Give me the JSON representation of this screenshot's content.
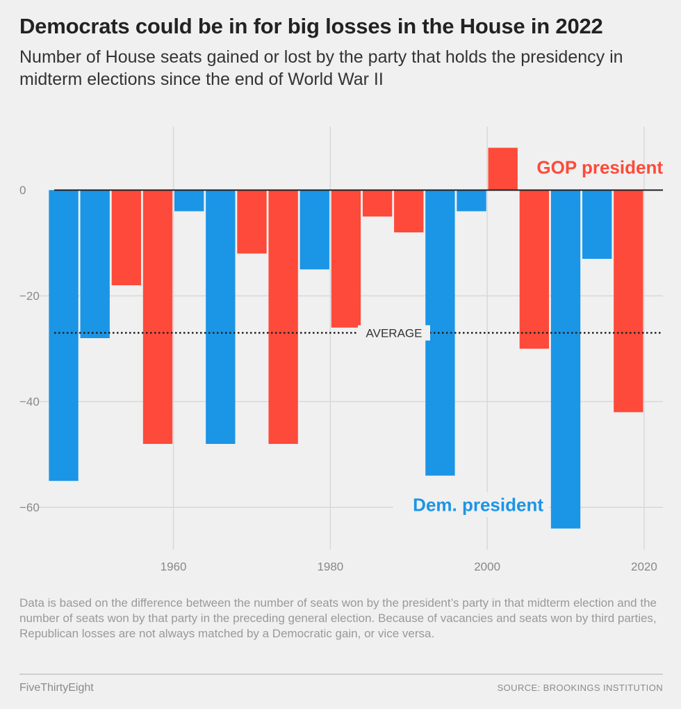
{
  "header": {
    "title": "Democrats could be in for big losses in the House in 2022",
    "subtitle": "Number of House seats gained or lost by the party that holds the presidency in midterm elections since the end of World War II"
  },
  "footer": {
    "note": "Data is based on the difference between the number of seats won by the president’s party in that midterm election and the number of seats won by that party in the preceding general election. Because of vacancies and seats won by third parties, Republican losses are not always matched by a Democratic gain, or vice versa.",
    "brand": "FiveThirtyEight",
    "source": "SOURCE: BROOKINGS INSTITUTION"
  },
  "chart_data": {
    "type": "bar",
    "x": [
      1946,
      1950,
      1954,
      1958,
      1962,
      1966,
      1970,
      1974,
      1978,
      1982,
      1986,
      1990,
      1994,
      1998,
      2002,
      2006,
      2010,
      2014,
      2018
    ],
    "values": [
      -55,
      -28,
      -18,
      -48,
      -4,
      -48,
      -12,
      -48,
      -15,
      -26,
      -5,
      -8,
      -54,
      -4,
      8,
      -30,
      -64,
      -13,
      -42
    ],
    "party": [
      "D",
      "D",
      "R",
      "R",
      "D",
      "D",
      "R",
      "R",
      "D",
      "R",
      "R",
      "R",
      "D",
      "D",
      "R",
      "R",
      "D",
      "D",
      "R"
    ],
    "colors": {
      "D": "#1b95e6",
      "R": "#fd4a3a",
      "zero_line": "#222222",
      "grid": "#d8d8d8",
      "tick": "#888888"
    },
    "x_ticks": [
      1960,
      1980,
      2000,
      2020
    ],
    "y_ticks": [
      0,
      -20,
      -40,
      -60
    ],
    "y_tick_labels": [
      "0",
      "−20",
      "−40",
      "−60"
    ],
    "ylim": [
      -68,
      12
    ],
    "xlim": [
      1944.8,
      2022.4
    ],
    "grid": true,
    "average": {
      "value": -27,
      "label": "AVERAGE"
    },
    "legend": {
      "R": "GOP president",
      "D": "Dem. president"
    }
  }
}
